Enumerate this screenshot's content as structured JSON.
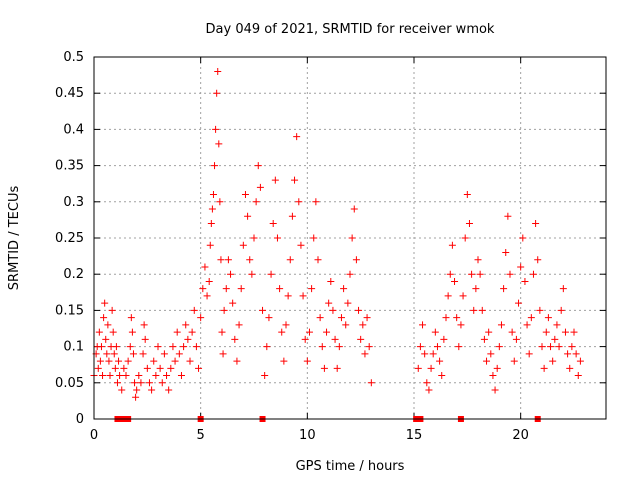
{
  "chart_data": {
    "type": "scatter",
    "title": "Day 049 of 2021, SRMTID for receiver wmok",
    "xlabel": "GPS time / hours",
    "ylabel": "SRMTID / TECUs",
    "xlim": [
      0,
      24
    ],
    "ylim": [
      0,
      0.5
    ],
    "x_ticks": [
      0,
      5,
      10,
      15,
      20
    ],
    "x_tick_labels": [
      "0",
      "5",
      "10",
      "15",
      "20"
    ],
    "y_ticks": [
      0,
      0.05,
      0.1,
      0.15,
      0.2,
      0.25,
      0.3,
      0.35,
      0.4,
      0.45,
      0.5
    ],
    "y_tick_labels": [
      "0",
      "0.05",
      "0.1",
      "0.15",
      "0.2",
      "0.25",
      "0.3",
      "0.35",
      "0.4",
      "0.45",
      "0.5"
    ],
    "grid": true,
    "color": "#ff0000",
    "marker": "plus",
    "series": [
      {
        "name": "SRMTID",
        "points": [
          [
            0.0,
            0.06
          ],
          [
            0.1,
            0.09
          ],
          [
            0.15,
            0.1
          ],
          [
            0.2,
            0.07
          ],
          [
            0.25,
            0.12
          ],
          [
            0.3,
            0.08
          ],
          [
            0.35,
            0.1
          ],
          [
            0.4,
            0.06
          ],
          [
            0.45,
            0.14
          ],
          [
            0.5,
            0.16
          ],
          [
            0.55,
            0.11
          ],
          [
            0.6,
            0.09
          ],
          [
            0.65,
            0.13
          ],
          [
            0.7,
            0.08
          ],
          [
            0.75,
            0.06
          ],
          [
            0.8,
            0.1
          ],
          [
            0.85,
            0.15
          ],
          [
            0.9,
            0.12
          ],
          [
            0.95,
            0.09
          ],
          [
            1.0,
            0.07
          ],
          [
            1.05,
            0.1
          ],
          [
            1.1,
            0.05
          ],
          [
            1.15,
            0.08
          ],
          [
            1.2,
            0.06
          ],
          [
            1.3,
            0.04
          ],
          [
            1.4,
            0.07
          ],
          [
            1.5,
            0.06
          ],
          [
            1.6,
            0.08
          ],
          [
            1.7,
            0.1
          ],
          [
            1.75,
            0.14
          ],
          [
            1.8,
            0.12
          ],
          [
            1.85,
            0.09
          ],
          [
            1.9,
            0.05
          ],
          [
            1.95,
            0.03
          ],
          [
            2.0,
            0.04
          ],
          [
            2.1,
            0.06
          ],
          [
            2.2,
            0.05
          ],
          [
            2.3,
            0.09
          ],
          [
            2.35,
            0.13
          ],
          [
            2.4,
            0.11
          ],
          [
            2.5,
            0.07
          ],
          [
            2.6,
            0.05
          ],
          [
            2.7,
            0.04
          ],
          [
            2.8,
            0.08
          ],
          [
            2.9,
            0.06
          ],
          [
            3.0,
            0.1
          ],
          [
            3.1,
            0.07
          ],
          [
            3.2,
            0.05
          ],
          [
            3.3,
            0.09
          ],
          [
            3.4,
            0.06
          ],
          [
            3.5,
            0.04
          ],
          [
            3.6,
            0.07
          ],
          [
            3.7,
            0.1
          ],
          [
            3.8,
            0.08
          ],
          [
            3.9,
            0.12
          ],
          [
            4.0,
            0.09
          ],
          [
            4.1,
            0.06
          ],
          [
            4.2,
            0.1
          ],
          [
            4.3,
            0.13
          ],
          [
            4.4,
            0.11
          ],
          [
            4.5,
            0.08
          ],
          [
            4.6,
            0.12
          ],
          [
            4.7,
            0.15
          ],
          [
            4.8,
            0.1
          ],
          [
            4.9,
            0.07
          ],
          [
            5.0,
            0.14
          ],
          [
            5.1,
            0.18
          ],
          [
            5.2,
            0.21
          ],
          [
            5.3,
            0.17
          ],
          [
            5.4,
            0.19
          ],
          [
            5.45,
            0.24
          ],
          [
            5.5,
            0.27
          ],
          [
            5.55,
            0.29
          ],
          [
            5.6,
            0.31
          ],
          [
            5.65,
            0.35
          ],
          [
            5.7,
            0.4
          ],
          [
            5.75,
            0.45
          ],
          [
            5.8,
            0.48
          ],
          [
            5.85,
            0.38
          ],
          [
            5.9,
            0.3
          ],
          [
            5.95,
            0.22
          ],
          [
            6.0,
            0.12
          ],
          [
            6.05,
            0.09
          ],
          [
            6.1,
            0.15
          ],
          [
            6.2,
            0.18
          ],
          [
            6.3,
            0.22
          ],
          [
            6.4,
            0.2
          ],
          [
            6.5,
            0.16
          ],
          [
            6.6,
            0.11
          ],
          [
            6.7,
            0.08
          ],
          [
            6.8,
            0.13
          ],
          [
            6.9,
            0.18
          ],
          [
            7.0,
            0.24
          ],
          [
            7.1,
            0.31
          ],
          [
            7.2,
            0.28
          ],
          [
            7.3,
            0.22
          ],
          [
            7.4,
            0.2
          ],
          [
            7.5,
            0.25
          ],
          [
            7.6,
            0.3
          ],
          [
            7.7,
            0.35
          ],
          [
            7.8,
            0.32
          ],
          [
            7.9,
            0.15
          ],
          [
            8.0,
            0.06
          ],
          [
            8.1,
            0.1
          ],
          [
            8.2,
            0.14
          ],
          [
            8.3,
            0.2
          ],
          [
            8.4,
            0.27
          ],
          [
            8.5,
            0.33
          ],
          [
            8.6,
            0.25
          ],
          [
            8.7,
            0.18
          ],
          [
            8.8,
            0.12
          ],
          [
            8.9,
            0.08
          ],
          [
            9.0,
            0.13
          ],
          [
            9.1,
            0.17
          ],
          [
            9.2,
            0.22
          ],
          [
            9.3,
            0.28
          ],
          [
            9.4,
            0.33
          ],
          [
            9.5,
            0.39
          ],
          [
            9.6,
            0.3
          ],
          [
            9.7,
            0.24
          ],
          [
            9.8,
            0.17
          ],
          [
            9.9,
            0.11
          ],
          [
            10.0,
            0.08
          ],
          [
            10.1,
            0.12
          ],
          [
            10.2,
            0.18
          ],
          [
            10.3,
            0.25
          ],
          [
            10.4,
            0.3
          ],
          [
            10.5,
            0.22
          ],
          [
            10.6,
            0.14
          ],
          [
            10.7,
            0.1
          ],
          [
            10.8,
            0.07
          ],
          [
            10.9,
            0.12
          ],
          [
            11.0,
            0.16
          ],
          [
            11.1,
            0.19
          ],
          [
            11.2,
            0.15
          ],
          [
            11.3,
            0.11
          ],
          [
            11.4,
            0.07
          ],
          [
            11.5,
            0.1
          ],
          [
            11.6,
            0.14
          ],
          [
            11.7,
            0.18
          ],
          [
            11.8,
            0.13
          ],
          [
            11.9,
            0.16
          ],
          [
            12.0,
            0.2
          ],
          [
            12.1,
            0.25
          ],
          [
            12.2,
            0.29
          ],
          [
            12.3,
            0.22
          ],
          [
            12.4,
            0.15
          ],
          [
            12.5,
            0.11
          ],
          [
            12.6,
            0.13
          ],
          [
            12.7,
            0.09
          ],
          [
            12.8,
            0.14
          ],
          [
            12.9,
            0.1
          ],
          [
            13.0,
            0.05
          ],
          [
            15.2,
            0.07
          ],
          [
            15.3,
            0.1
          ],
          [
            15.4,
            0.13
          ],
          [
            15.5,
            0.09
          ],
          [
            15.6,
            0.05
          ],
          [
            15.7,
            0.04
          ],
          [
            15.8,
            0.07
          ],
          [
            15.9,
            0.09
          ],
          [
            16.0,
            0.12
          ],
          [
            16.1,
            0.1
          ],
          [
            16.2,
            0.08
          ],
          [
            16.3,
            0.06
          ],
          [
            16.4,
            0.11
          ],
          [
            16.5,
            0.14
          ],
          [
            16.6,
            0.17
          ],
          [
            16.7,
            0.2
          ],
          [
            16.8,
            0.24
          ],
          [
            16.9,
            0.19
          ],
          [
            17.0,
            0.14
          ],
          [
            17.1,
            0.1
          ],
          [
            17.2,
            0.13
          ],
          [
            17.3,
            0.17
          ],
          [
            17.4,
            0.25
          ],
          [
            17.5,
            0.31
          ],
          [
            17.6,
            0.27
          ],
          [
            17.7,
            0.2
          ],
          [
            17.8,
            0.15
          ],
          [
            17.9,
            0.18
          ],
          [
            18.0,
            0.22
          ],
          [
            18.1,
            0.2
          ],
          [
            18.2,
            0.15
          ],
          [
            18.3,
            0.11
          ],
          [
            18.4,
            0.08
          ],
          [
            18.5,
            0.12
          ],
          [
            18.6,
            0.09
          ],
          [
            18.7,
            0.06
          ],
          [
            18.8,
            0.04
          ],
          [
            18.9,
            0.07
          ],
          [
            19.0,
            0.1
          ],
          [
            19.1,
            0.13
          ],
          [
            19.2,
            0.18
          ],
          [
            19.3,
            0.23
          ],
          [
            19.4,
            0.28
          ],
          [
            19.5,
            0.2
          ],
          [
            19.6,
            0.12
          ],
          [
            19.7,
            0.08
          ],
          [
            19.8,
            0.11
          ],
          [
            19.9,
            0.16
          ],
          [
            20.0,
            0.21
          ],
          [
            20.1,
            0.25
          ],
          [
            20.2,
            0.19
          ],
          [
            20.3,
            0.13
          ],
          [
            20.4,
            0.09
          ],
          [
            20.5,
            0.14
          ],
          [
            20.6,
            0.2
          ],
          [
            20.7,
            0.27
          ],
          [
            20.8,
            0.22
          ],
          [
            20.9,
            0.15
          ],
          [
            21.0,
            0.1
          ],
          [
            21.1,
            0.07
          ],
          [
            21.2,
            0.12
          ],
          [
            21.3,
            0.14
          ],
          [
            21.4,
            0.1
          ],
          [
            21.5,
            0.08
          ],
          [
            21.6,
            0.11
          ],
          [
            21.7,
            0.13
          ],
          [
            21.8,
            0.1
          ],
          [
            21.9,
            0.15
          ],
          [
            22.0,
            0.18
          ],
          [
            22.1,
            0.12
          ],
          [
            22.2,
            0.09
          ],
          [
            22.3,
            0.07
          ],
          [
            22.4,
            0.1
          ],
          [
            22.5,
            0.12
          ],
          [
            22.6,
            0.09
          ],
          [
            22.7,
            0.06
          ],
          [
            22.8,
            0.08
          ]
        ]
      }
    ],
    "gap_markers": [
      1.1,
      1.2,
      1.4,
      1.6,
      5.0,
      7.9,
      15.1,
      15.3,
      17.2,
      20.8
    ]
  }
}
